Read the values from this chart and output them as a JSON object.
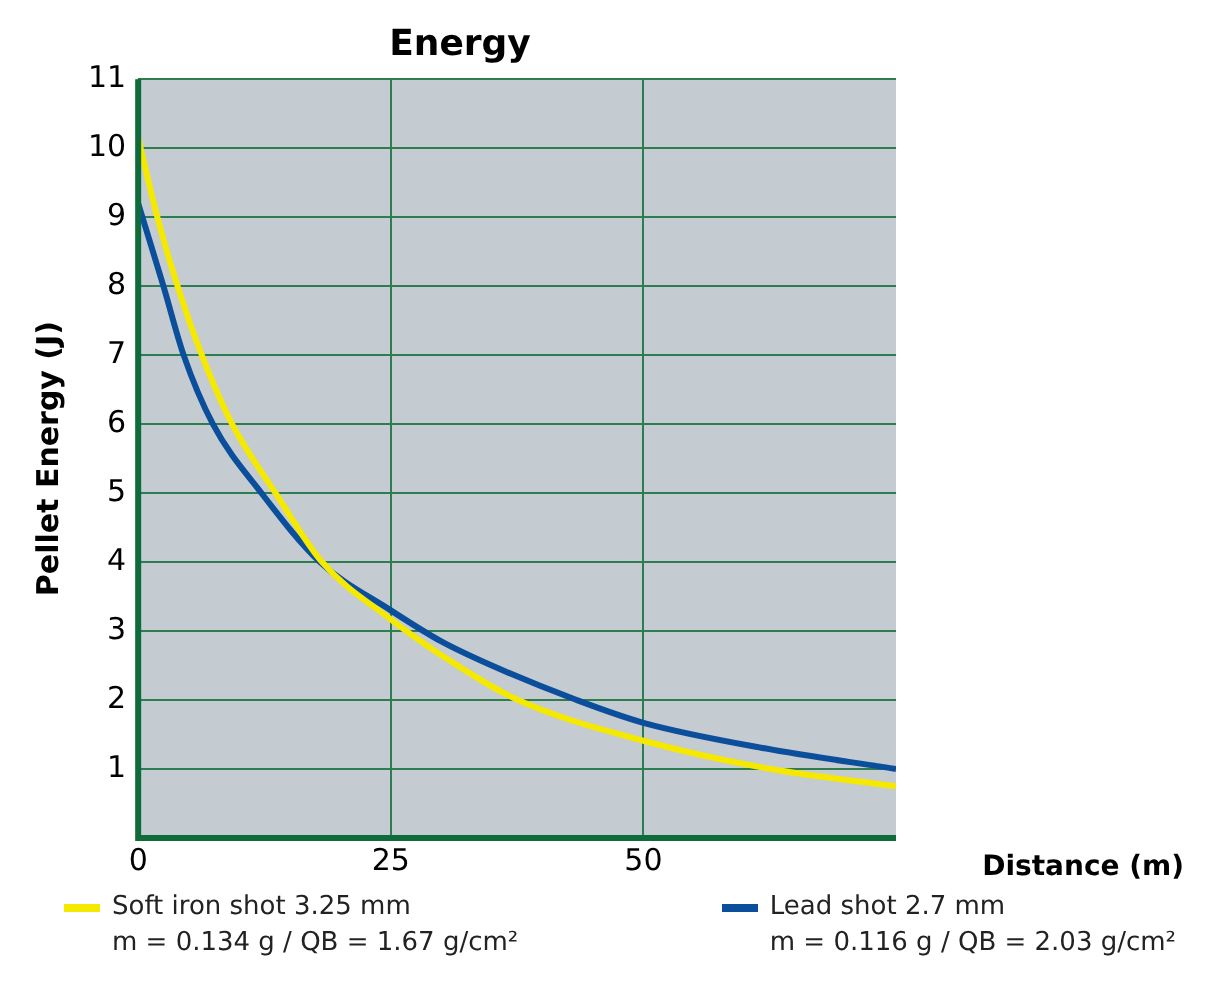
{
  "chart_data": {
    "type": "line",
    "title": "Energy",
    "xlabel": "Distance (m)",
    "ylabel": "Pellet Energy (J)",
    "xlim": [
      0,
      75
    ],
    "xticks": [
      0,
      25,
      50
    ],
    "ylim": [
      0,
      11
    ],
    "yticks": [
      1,
      2,
      3,
      4,
      5,
      6,
      7,
      8,
      9,
      10,
      11
    ],
    "grid": true,
    "legend": "bottom",
    "marker": "none",
    "line_style": "solid",
    "series": [
      {
        "name": "Soft iron shot 3.25 mm\nm = 0.134 g / QB = 1.67 g/cm²",
        "color": "#f5e900",
        "x": [
          0,
          1.9,
          3.9,
          6.3,
          9.3,
          13.6,
          18.2,
          25,
          30,
          37.6,
          50,
          62.6,
          75
        ],
        "values": [
          10.15,
          9,
          8,
          7,
          6,
          5,
          4,
          3.17,
          2.65,
          2,
          1.41,
          1,
          0.75
        ]
      },
      {
        "name": "Lead shot 2.7 mm\nm = 0.116 g / QB = 2.03 g/cm²",
        "color": "#0b4f9c",
        "x": [
          0,
          2.5,
          4.5,
          7.4,
          12.2,
          18,
          25,
          30,
          35,
          43.4,
          50,
          62,
          75
        ],
        "values": [
          9.2,
          8,
          7,
          6,
          5,
          4,
          3.3,
          2.85,
          2.5,
          2,
          1.67,
          1.3,
          1
        ]
      }
    ]
  }
}
